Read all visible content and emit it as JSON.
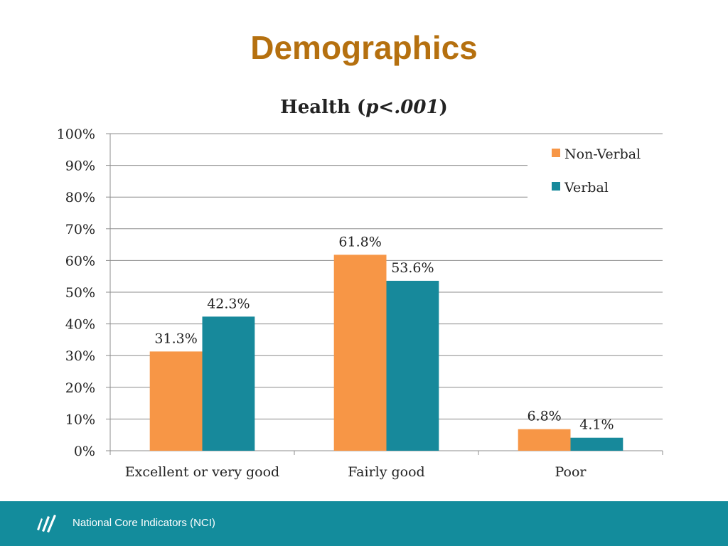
{
  "slide": {
    "title": "Demographics",
    "footer_text": "National Core Indicators (NCI)"
  },
  "colors": {
    "title": "#b5700f",
    "series_nonverbal": "#f79646",
    "series_verbal": "#17899b",
    "footer": "#138c9c"
  },
  "chart_data": {
    "type": "bar",
    "title_prefix": "Health (",
    "title_italic": "p<.001",
    "title_suffix": ")",
    "categories": [
      "Excellent or very good",
      "Fairly good",
      "Poor"
    ],
    "series": [
      {
        "name": "Non-Verbal",
        "values": [
          31.3,
          61.8,
          6.8
        ],
        "labels": [
          "31.3%",
          "61.8%",
          "6.8%"
        ]
      },
      {
        "name": "Verbal",
        "values": [
          42.3,
          53.6,
          4.1
        ],
        "labels": [
          "42.3%",
          "53.6%",
          "4.1%"
        ]
      }
    ],
    "ylim": [
      0,
      100
    ],
    "yticks": [
      0,
      10,
      20,
      30,
      40,
      50,
      60,
      70,
      80,
      90,
      100
    ],
    "ytick_labels": [
      "0%",
      "10%",
      "20%",
      "30%",
      "40%",
      "50%",
      "60%",
      "70%",
      "80%",
      "90%",
      "100%"
    ],
    "grid": true,
    "legend_position": "top-right",
    "xlabel": "",
    "ylabel": ""
  }
}
